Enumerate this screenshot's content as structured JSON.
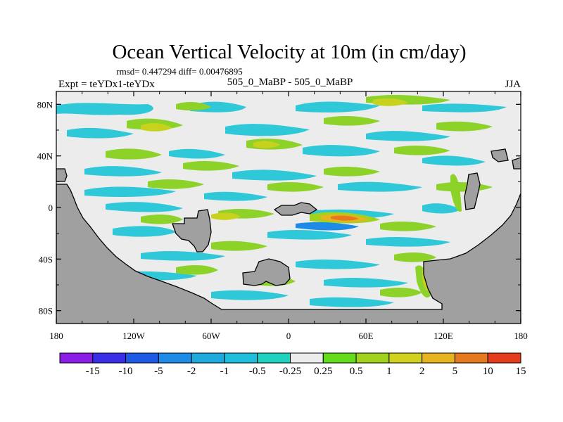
{
  "chart_data": {
    "type": "heatmap",
    "title": "Ocean Vertical Velocity at 10m (in cm/day)",
    "stats_line": "rmsd= 0.447294 diff= 0.00476895",
    "left_label": "Expt = teYDx1-teYDx",
    "center_label": "505_0_MaBP - 505_0_MaBP",
    "right_label": "JJA",
    "x_axis": {
      "range": [
        -180,
        180
      ],
      "ticks": [
        -180,
        -120,
        -60,
        0,
        60,
        120,
        180
      ],
      "tick_labels": [
        "180",
        "120W",
        "60W",
        "0",
        "60E",
        "120E",
        "180"
      ]
    },
    "y_axis": {
      "range": [
        -90,
        90
      ],
      "ticks": [
        80,
        40,
        0,
        -40,
        -80
      ],
      "tick_labels": [
        "80N",
        "40N",
        "0",
        "40S",
        "80S"
      ]
    },
    "colorbar": {
      "levels": [
        "-15",
        "-10",
        "-5",
        "-2",
        "-1",
        "-0.5",
        "-0.25",
        "0.25",
        "0.5",
        "1",
        "2",
        "5",
        "10",
        "15"
      ],
      "colors": [
        "#8a1ee6",
        "#3a2ee6",
        "#1e5ae6",
        "#1e8ce6",
        "#1eaadc",
        "#1ebedc",
        "#1ed2be",
        "#ececec",
        "#64dc1e",
        "#a0d21e",
        "#d2d21e",
        "#e6b41e",
        "#e6781e",
        "#e63c1e"
      ]
    },
    "field_legend": {
      "land": "#a0a0a0",
      "neutral": "#ececec",
      "weak_pos": "#a0d21e",
      "weak_neg": "#1ebedc"
    }
  }
}
